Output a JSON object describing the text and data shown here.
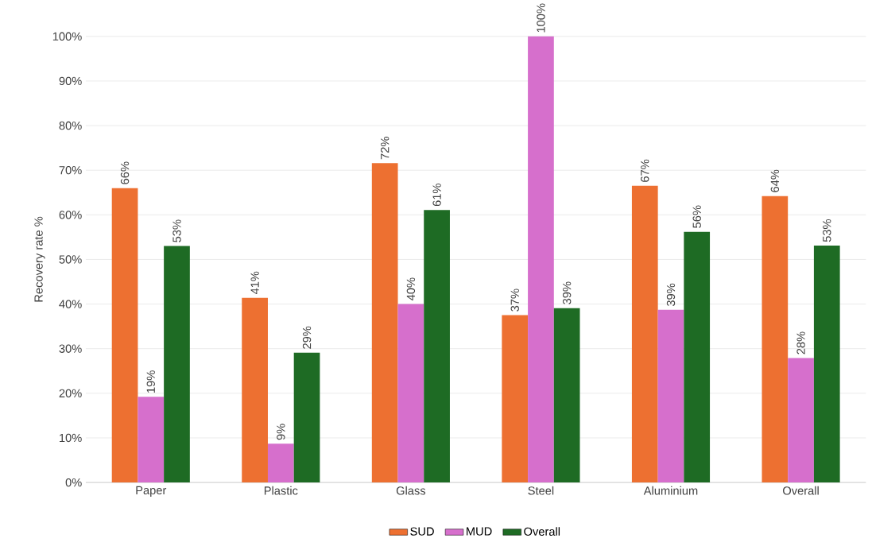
{
  "chart_data": {
    "type": "bar",
    "ylabel": "Recovery rate %",
    "categories": [
      "Paper",
      "Plastic",
      "Glass",
      "Steel",
      "Aluminium",
      "Overall"
    ],
    "series": [
      {
        "name": "SUD",
        "color": "#ed7031",
        "values": [
          66.0,
          41.4,
          71.6,
          37.5,
          66.5,
          64.2
        ],
        "value_labels": [
          "66%",
          "41%",
          "72%",
          "37%",
          "67%",
          "64%"
        ]
      },
      {
        "name": "MUD",
        "color": "#d66fcc",
        "values": [
          19.2,
          8.7,
          40.0,
          100.0,
          38.7,
          27.9
        ],
        "value_labels": [
          "19%",
          "9%",
          "40%",
          "100%",
          "39%",
          "28%"
        ]
      },
      {
        "name": "Overall",
        "color": "#1e6b24",
        "values": [
          53.0,
          29.1,
          61.1,
          39.1,
          56.2,
          53.1
        ],
        "value_labels": [
          "53%",
          "29%",
          "61%",
          "39%",
          "56%",
          "53%"
        ]
      }
    ],
    "ylim": [
      0,
      100
    ],
    "yticks": [
      {
        "value": 0,
        "label": "0%"
      },
      {
        "value": 10,
        "label": "10%"
      },
      {
        "value": 20,
        "label": "20%"
      },
      {
        "value": 30,
        "label": "30%"
      },
      {
        "value": 40,
        "label": "40%"
      },
      {
        "value": 50,
        "label": "50%"
      },
      {
        "value": 60,
        "label": "60%"
      },
      {
        "value": 70,
        "label": "70%"
      },
      {
        "value": 80,
        "label": "80%"
      },
      {
        "value": 90,
        "label": "90%"
      },
      {
        "value": 100,
        "label": "100%"
      }
    ],
    "grid": "y",
    "legend": "bottom"
  }
}
